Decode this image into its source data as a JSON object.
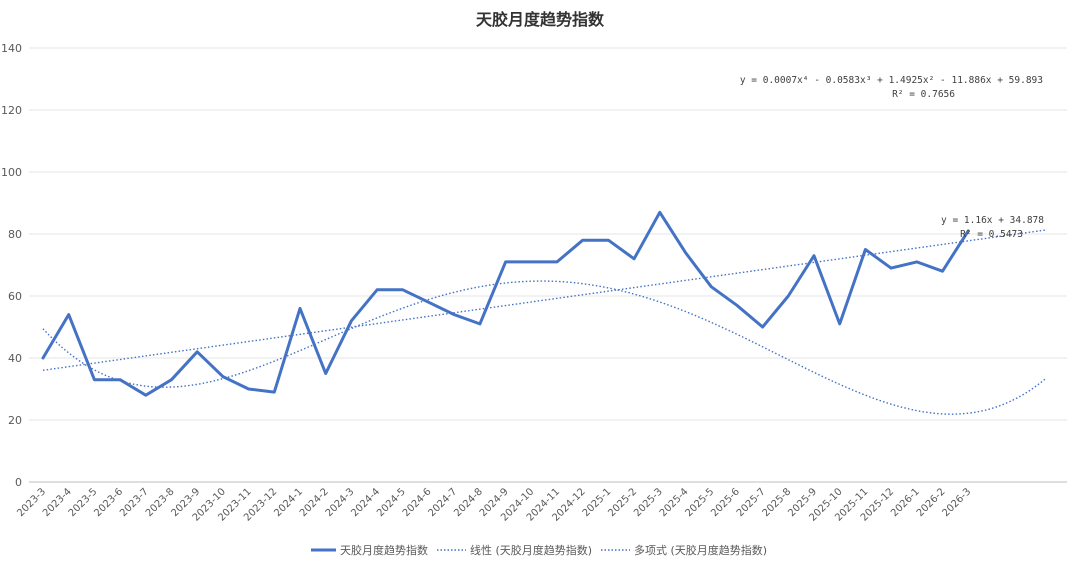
{
  "chart_data": {
    "type": "line",
    "title": "天胶月度趋势指数",
    "xlabel": "",
    "ylabel": "",
    "ylim": [
      0,
      140
    ],
    "yticks": [
      "0",
      "20",
      "40",
      "60",
      "80",
      "100",
      "120",
      "140"
    ],
    "grid": true,
    "legend_position": "bottom",
    "categories": [
      "2023-3",
      "2023-4",
      "2023-5",
      "2023-6",
      "2023-7",
      "2023-8",
      "2023-9",
      "2023-10",
      "2023-11",
      "2023-12",
      "2024-1",
      "2024-2",
      "2024-3",
      "2024-4",
      "2024-5",
      "2024-6",
      "2024-7",
      "2024-8",
      "2024-9",
      "2024-10",
      "2024-11",
      "2024-12",
      "2025-1",
      "2025-2",
      "2025-3",
      "2025-4",
      "2025-5",
      "2025-6",
      "2025-7",
      "2025-8",
      "2025-9",
      "2025-10",
      "2025-11",
      "2025-12",
      "2026-1",
      "2026-2",
      "2026-3"
    ],
    "series": [
      {
        "name": "天胶月度趋势指数",
        "kind": "data",
        "color": "#4472C4",
        "values": [
          40,
          54,
          33,
          33,
          28,
          33,
          42,
          34,
          30,
          29,
          56,
          35,
          52,
          62,
          62,
          58,
          54,
          51,
          71,
          71,
          71,
          78,
          78,
          72,
          87,
          74,
          63,
          57,
          50,
          60,
          73,
          51,
          75,
          69,
          71,
          68,
          81
        ]
      },
      {
        "name": "线性 (天胶月度趋势指数)",
        "kind": "linear_trend",
        "color": "#4472C4",
        "slope": 1.16,
        "intercept": 34.878,
        "x_range": [
          1,
          40
        ]
      },
      {
        "name": "多项式 (天胶月度趋势指数)",
        "kind": "poly_trend",
        "color": "#4472C4",
        "coefficients": [
          59.893,
          -11.886,
          1.4925,
          -0.0583,
          0.0007
        ],
        "x_range": [
          1,
          40
        ]
      }
    ],
    "annotations": [
      {
        "text": "y = 0.0007x⁴ - 0.0583x³ + 1.4925x² - 11.886x + 59.893"
      },
      {
        "text": "R² = 0.7656"
      },
      {
        "text": "y = 1.16x + 34.878"
      },
      {
        "text": "R² = 0.5473"
      }
    ]
  }
}
